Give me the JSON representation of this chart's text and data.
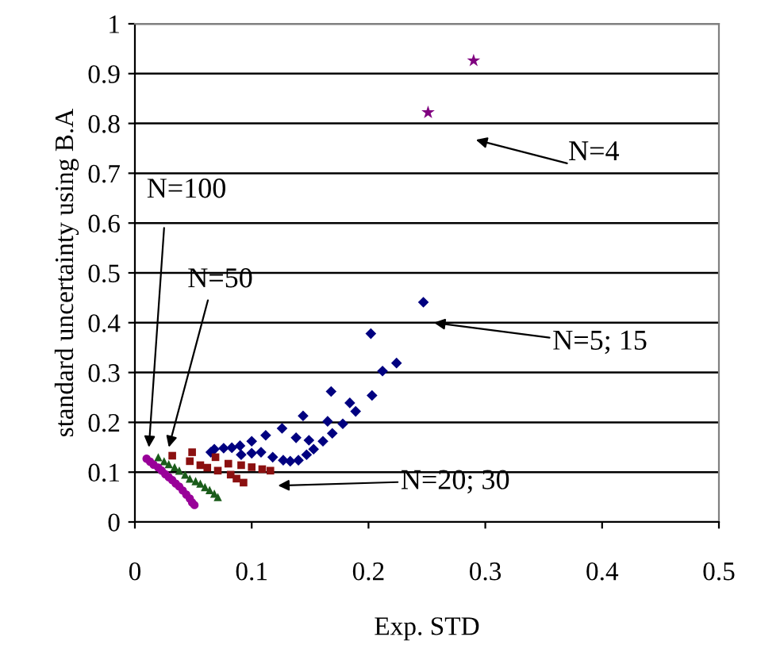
{
  "chart_data": {
    "type": "scatter",
    "xlabel": "Exp. STD",
    "ylabel": "standard uncertainty using B.A",
    "xlim": [
      0,
      0.5
    ],
    "xticks": [
      0,
      0.1,
      0.2,
      0.3,
      0.4,
      0.5
    ],
    "ylim": [
      0,
      1
    ],
    "yticks": [
      0,
      0.1,
      0.2,
      0.3,
      0.4,
      0.5,
      0.6,
      0.7,
      0.8,
      0.9,
      1
    ],
    "grid": "y",
    "series": [
      {
        "color": "#000080",
        "marker": "diamond",
        "x": [
          0.247,
          0.202,
          0.212,
          0.224,
          0.203,
          0.168,
          0.184,
          0.189,
          0.165,
          0.178,
          0.144,
          0.126,
          0.112,
          0.1,
          0.09,
          0.083,
          0.076,
          0.068,
          0.065,
          0.091,
          0.1,
          0.108,
          0.118,
          0.127,
          0.133,
          0.14,
          0.147,
          0.153,
          0.161,
          0.169,
          0.149,
          0.138
        ],
        "values": [
          0.441,
          0.378,
          0.303,
          0.319,
          0.254,
          0.262,
          0.239,
          0.222,
          0.202,
          0.197,
          0.213,
          0.188,
          0.174,
          0.162,
          0.153,
          0.149,
          0.148,
          0.146,
          0.14,
          0.135,
          0.138,
          0.14,
          0.13,
          0.124,
          0.122,
          0.124,
          0.135,
          0.146,
          0.162,
          0.178,
          0.164,
          0.169
        ]
      },
      {
        "color": "#8b1010",
        "marker": "square",
        "x": [
          0.032,
          0.049,
          0.047,
          0.056,
          0.062,
          0.069,
          0.071,
          0.08,
          0.082,
          0.091,
          0.093,
          0.1,
          0.109,
          0.116,
          0.087
        ],
        "values": [
          0.133,
          0.14,
          0.122,
          0.114,
          0.109,
          0.13,
          0.103,
          0.117,
          0.095,
          0.114,
          0.079,
          0.11,
          0.106,
          0.103,
          0.087
        ]
      },
      {
        "color": "#1a5c1a",
        "marker": "triangle",
        "x": [
          0.02,
          0.025,
          0.029,
          0.034,
          0.038,
          0.043,
          0.047,
          0.052,
          0.056,
          0.06,
          0.064,
          0.068,
          0.071
        ],
        "values": [
          0.13,
          0.122,
          0.116,
          0.11,
          0.103,
          0.095,
          0.087,
          0.082,
          0.077,
          0.07,
          0.064,
          0.057,
          0.05
        ]
      },
      {
        "color": "#990099",
        "marker": "circle",
        "x": [
          0.01,
          0.013,
          0.016,
          0.02,
          0.023,
          0.026,
          0.029,
          0.032,
          0.035,
          0.038,
          0.041,
          0.044,
          0.047,
          0.049,
          0.051
        ],
        "values": [
          0.127,
          0.121,
          0.115,
          0.109,
          0.103,
          0.096,
          0.09,
          0.084,
          0.077,
          0.071,
          0.063,
          0.055,
          0.047,
          0.039,
          0.034
        ]
      },
      {
        "color": "#800080",
        "marker": "star",
        "x": [
          0.251,
          0.29
        ],
        "values": [
          0.822,
          0.926
        ]
      }
    ],
    "annotations": [
      "N=100",
      "N=50",
      "N=4",
      "N=5; 15",
      "N=20; 30"
    ]
  }
}
